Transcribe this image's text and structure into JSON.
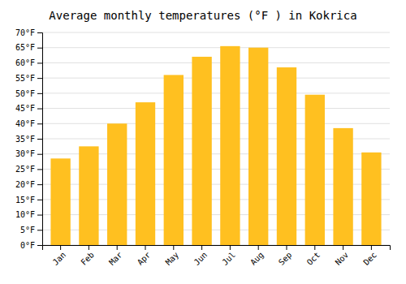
{
  "chart_data": {
    "type": "bar",
    "title": "Average monthly temperatures (°F ) in Kokrica",
    "categories": [
      "Jan",
      "Feb",
      "Mar",
      "Apr",
      "May",
      "Jun",
      "Jul",
      "Aug",
      "Sep",
      "Oct",
      "Nov",
      "Dec"
    ],
    "values": [
      28.5,
      32.5,
      40.0,
      47.0,
      56.0,
      62.0,
      65.5,
      65.0,
      58.5,
      49.5,
      38.5,
      30.5
    ],
    "color": "#FFC020",
    "ylim": [
      0,
      70
    ],
    "yticks": [
      {
        "value": 0,
        "label": "0°F"
      },
      {
        "value": 5,
        "label": "5°F"
      },
      {
        "value": 10,
        "label": "10°F"
      },
      {
        "value": 15,
        "label": "15°F"
      },
      {
        "value": 20,
        "label": "20°F"
      },
      {
        "value": 25,
        "label": "25°F"
      },
      {
        "value": 30,
        "label": "30°F"
      },
      {
        "value": 35,
        "label": "35°F"
      },
      {
        "value": 40,
        "label": "40°F"
      },
      {
        "value": 45,
        "label": "45°F"
      },
      {
        "value": 50,
        "label": "50°F"
      },
      {
        "value": 55,
        "label": "55°F"
      },
      {
        "value": 60,
        "label": "60°F"
      },
      {
        "value": 65,
        "label": "65°F"
      },
      {
        "value": 70,
        "label": "70°F"
      }
    ],
    "grid": true
  }
}
